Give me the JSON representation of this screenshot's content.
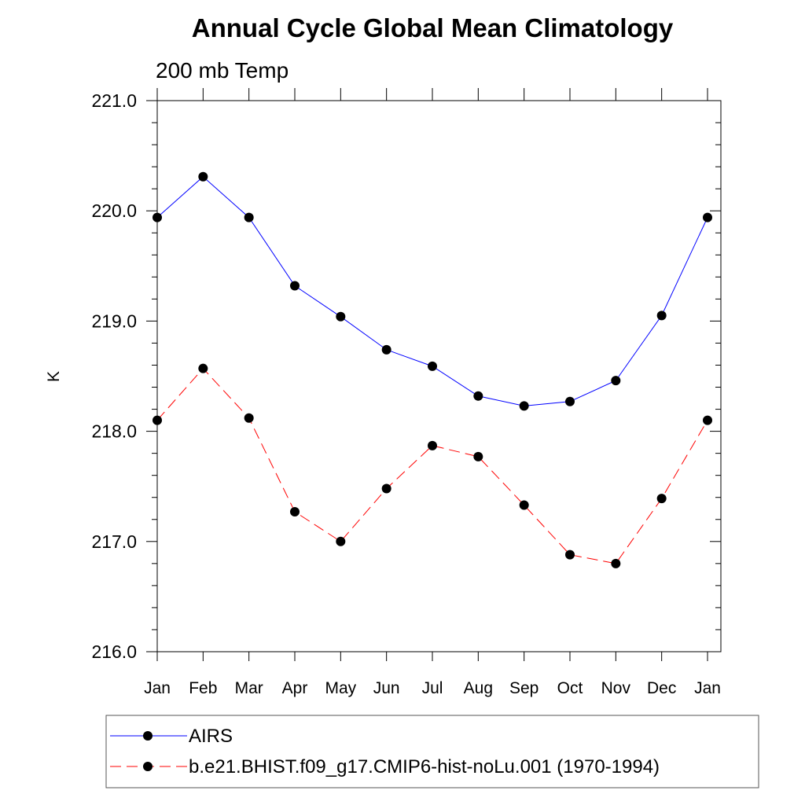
{
  "chart_data": {
    "type": "line",
    "title": "Annual Cycle Global Mean Climatology",
    "subtitle": "200 mb Temp",
    "xlabel": "",
    "ylabel": "K",
    "categories": [
      "Jan",
      "Feb",
      "Mar",
      "Apr",
      "May",
      "Jun",
      "Jul",
      "Aug",
      "Sep",
      "Oct",
      "Nov",
      "Dec",
      "Jan"
    ],
    "ylim": [
      216.0,
      221.0
    ],
    "yticks": [
      "216.0",
      "217.0",
      "218.0",
      "219.0",
      "220.0",
      "221.0"
    ],
    "grid": false,
    "legend_position": "bottom",
    "series": [
      {
        "name": "AIRS",
        "color": "#0000ff",
        "dash": "solid",
        "marker": "filled-circle",
        "values": [
          219.94,
          220.31,
          219.94,
          219.32,
          219.04,
          218.74,
          218.59,
          218.32,
          218.23,
          218.27,
          218.46,
          219.05,
          219.94
        ]
      },
      {
        "name": "b.e21.BHIST.f09_g17.CMIP6-hist-noLu.001 (1970-1994)",
        "color": "#ff0000",
        "dash": "dashed",
        "marker": "filled-circle",
        "values": [
          218.1,
          218.57,
          218.12,
          217.27,
          217.0,
          217.48,
          217.87,
          217.77,
          217.33,
          216.88,
          216.8,
          217.39,
          218.1
        ]
      }
    ]
  }
}
